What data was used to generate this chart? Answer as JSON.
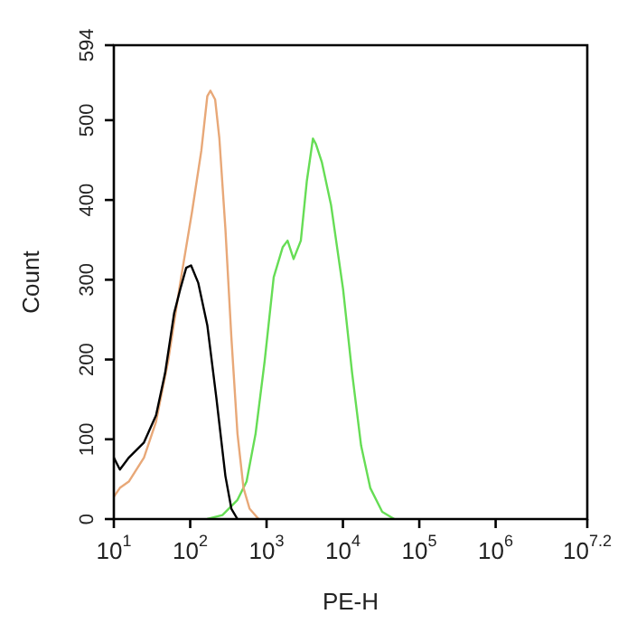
{
  "chart_data": {
    "type": "line",
    "xlabel": "PE-H",
    "ylabel": "Count",
    "log": "x",
    "xlim": [
      10,
      15848932
    ],
    "ylim": [
      0,
      594
    ],
    "xticks": [
      {
        "value": 10,
        "label": "10$^{1}$"
      },
      {
        "value": 100,
        "label": "10$^{2}$"
      },
      {
        "value": 1000,
        "label": "10$^{3}$"
      },
      {
        "value": 10000,
        "label": "10$^{4}$"
      },
      {
        "value": 100000,
        "label": "10$^{5}$"
      },
      {
        "value": 1000000,
        "label": "10$^{6}$"
      },
      {
        "value": 15848932,
        "label": "10$^{7.2}$"
      }
    ],
    "yticks": [
      0,
      100,
      200,
      300,
      400,
      500,
      594
    ],
    "grid": false,
    "legend": false,
    "marker": "none",
    "line_style": "solid",
    "series": [
      {
        "color": "#000000",
        "x": [
          10,
          12,
          15.7,
          24.8,
          35.7,
          46.9,
          61.6,
          74,
          88.7,
          102.6,
          127.6,
          167.5,
          220,
          289,
          346,
          416
        ],
        "values": [
          77,
          62,
          77,
          96,
          130,
          183,
          258,
          288,
          315,
          318,
          296,
          243,
          152,
          54,
          13,
          0
        ]
      },
      {
        "color": "#e8a878",
        "x": [
          10,
          12,
          15.7,
          24.8,
          35.7,
          51.4,
          74,
          106,
          140,
          167.5,
          184,
          212,
          241,
          289,
          346,
          416,
          499,
          599,
          787
        ],
        "values": [
          28,
          39,
          47,
          77,
          122,
          198,
          296,
          386,
          462,
          530,
          537,
          526,
          477,
          364,
          228,
          107,
          39,
          13,
          0
        ]
      },
      {
        "color": "#66dd55",
        "x": [
          167,
          264,
          416,
          547,
          718,
          944,
          1240,
          1630,
          1884,
          2260,
          2810,
          3370,
          4050,
          4430,
          5310,
          6980,
          10050,
          13200,
          17300,
          22800,
          32700,
          47100
        ],
        "values": [
          0,
          5,
          24,
          47,
          107,
          198,
          303,
          341,
          349,
          326,
          349,
          424,
          477,
          470,
          447,
          394,
          288,
          183,
          92,
          39,
          9,
          0
        ]
      }
    ]
  }
}
